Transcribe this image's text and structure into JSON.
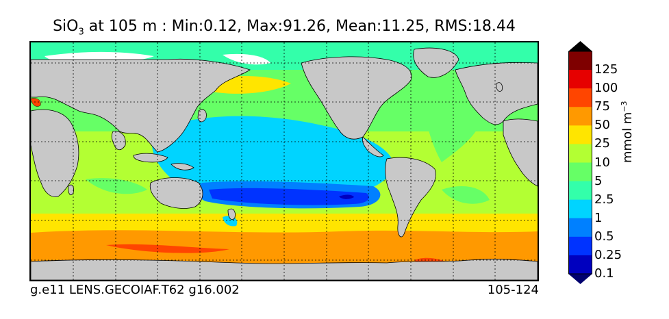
{
  "title": {
    "prefix": "SiO",
    "subscript": "3",
    "suffix": " at 105 m : Min:0.12, Max:91.26, Mean:11.25, RMS:18.44"
  },
  "footer": {
    "case_name": "g.e11 LENS.GECOIAF.T62 g16.002",
    "years": "105-124"
  },
  "colorbar": {
    "unit_base": "mmol m",
    "unit_exp": "−3",
    "levels": [
      "125",
      "100",
      "75",
      "50",
      "25",
      "10",
      "5",
      "2.5",
      "1",
      "0.5",
      "0.25",
      "0.1"
    ],
    "colors": [
      "#7f0000",
      "#e60000",
      "#ff4500",
      "#ff9900",
      "#ffe500",
      "#b3ff33",
      "#66ff66",
      "#33ffaa",
      "#00d4ff",
      "#0080ff",
      "#0033ff",
      "#0000bf",
      "#00006f"
    ],
    "extend": "both"
  },
  "map": {
    "field": "SiO3",
    "projection": "cylindrical",
    "land_color": "#c8c8c8",
    "sea_ice_color": "#ffffff",
    "gridlines": "dotted"
  }
}
